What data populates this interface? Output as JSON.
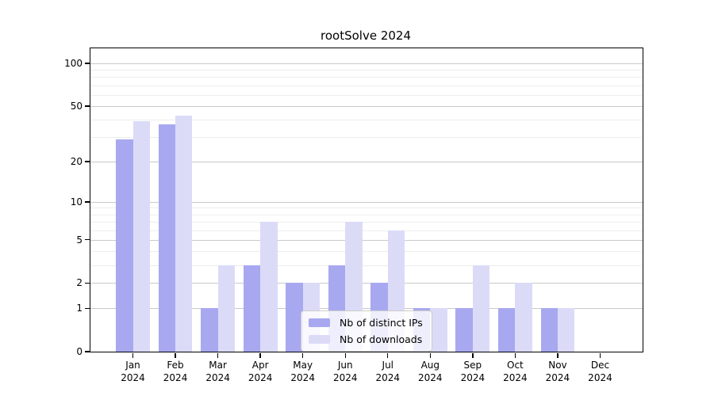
{
  "chart_data": {
    "type": "bar",
    "title": "rootSolve 2024",
    "xlabel": "",
    "ylabel": "",
    "year_label": "2024",
    "categories": [
      "Jan",
      "Feb",
      "Mar",
      "Apr",
      "May",
      "Jun",
      "Jul",
      "Aug",
      "Sep",
      "Oct",
      "Nov",
      "Dec"
    ],
    "series": [
      {
        "name": "Nb of distinct IPs",
        "color": "#a8a8f0",
        "values": [
          29,
          37,
          1,
          3,
          2,
          3,
          2,
          1,
          1,
          1,
          1,
          0
        ]
      },
      {
        "name": "Nb of downloads",
        "color": "#dbdbf8",
        "values": [
          39,
          43,
          3,
          7,
          2,
          7,
          6,
          1,
          3,
          2,
          1,
          0
        ]
      }
    ],
    "y_axis": {
      "scale": "log1p",
      "major_ticks": [
        0,
        1,
        2,
        5,
        10,
        20,
        50,
        100
      ],
      "minor_ticks": [
        3,
        4,
        6,
        7,
        8,
        9,
        30,
        40,
        60,
        70,
        80,
        90
      ],
      "ylim_top_value": 130
    },
    "grid": {
      "major_color": "#c9c9c9",
      "minor_color": "#ededed"
    },
    "legend": {
      "position": "lower-center"
    },
    "colors": {
      "axis": "#000000",
      "background": "#ffffff"
    }
  }
}
